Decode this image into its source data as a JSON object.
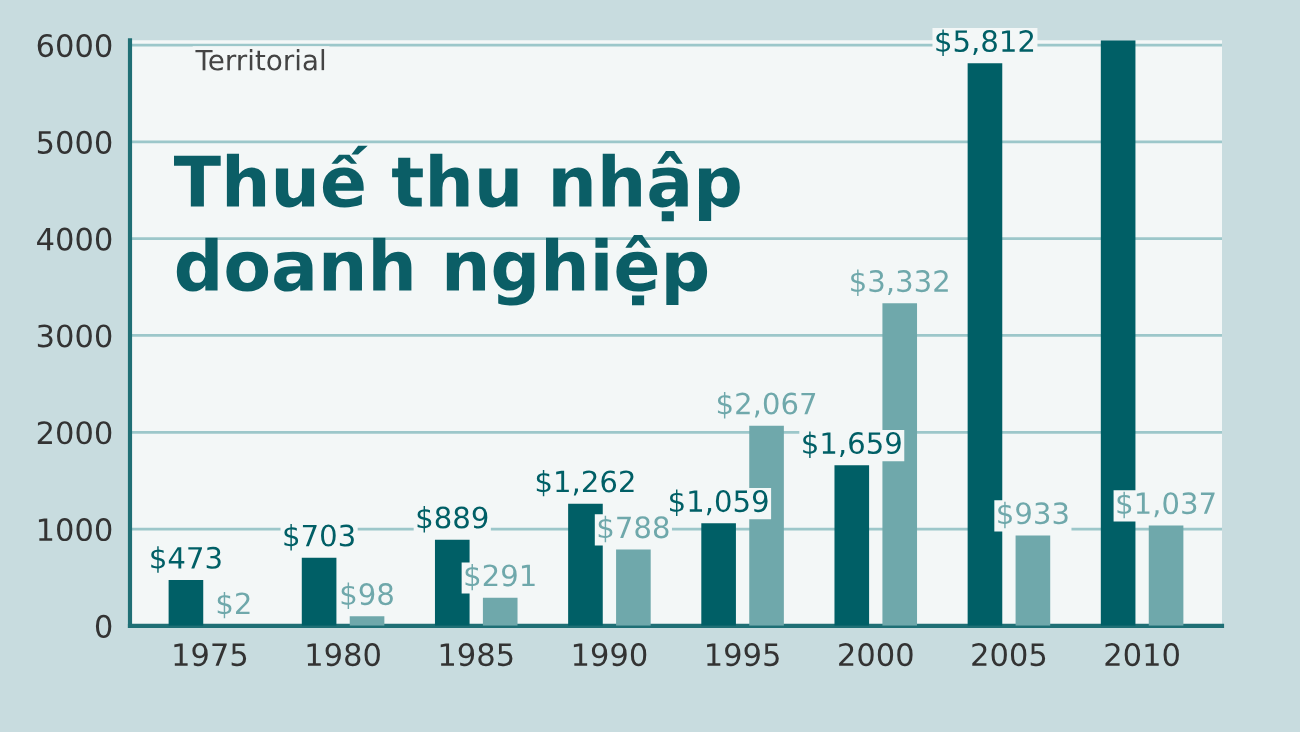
{
  "chart_data": {
    "type": "bar",
    "title": "Thuế thu nhập\ndoanh nghiệp",
    "categories": [
      "1975",
      "1980",
      "1985",
      "1990",
      "1995",
      "2000",
      "2005",
      "2010"
    ],
    "series": [
      {
        "color": "#005f66",
        "values": [
          473,
          703,
          889,
          1262,
          1059,
          1659,
          5812,
          6050
        ],
        "value_labels": [
          "$473",
          "$703",
          "$889",
          "$1,262",
          "$1,059",
          "$1,659",
          "$5,812",
          null
        ]
      },
      {
        "color": "#6fa8ab",
        "values": [
          2,
          98,
          291,
          788,
          2067,
          3332,
          933,
          1037
        ],
        "value_labels": [
          "$2",
          "$98",
          "$291",
          "$788",
          "$2,067",
          "$3,332",
          "$933",
          "$1,037"
        ]
      }
    ],
    "annotations": [
      "Territorial"
    ],
    "ylim": [
      0,
      6050
    ],
    "yticks": [
      0,
      1000,
      2000,
      3000,
      4000,
      5000,
      6000
    ],
    "grid": "y"
  }
}
